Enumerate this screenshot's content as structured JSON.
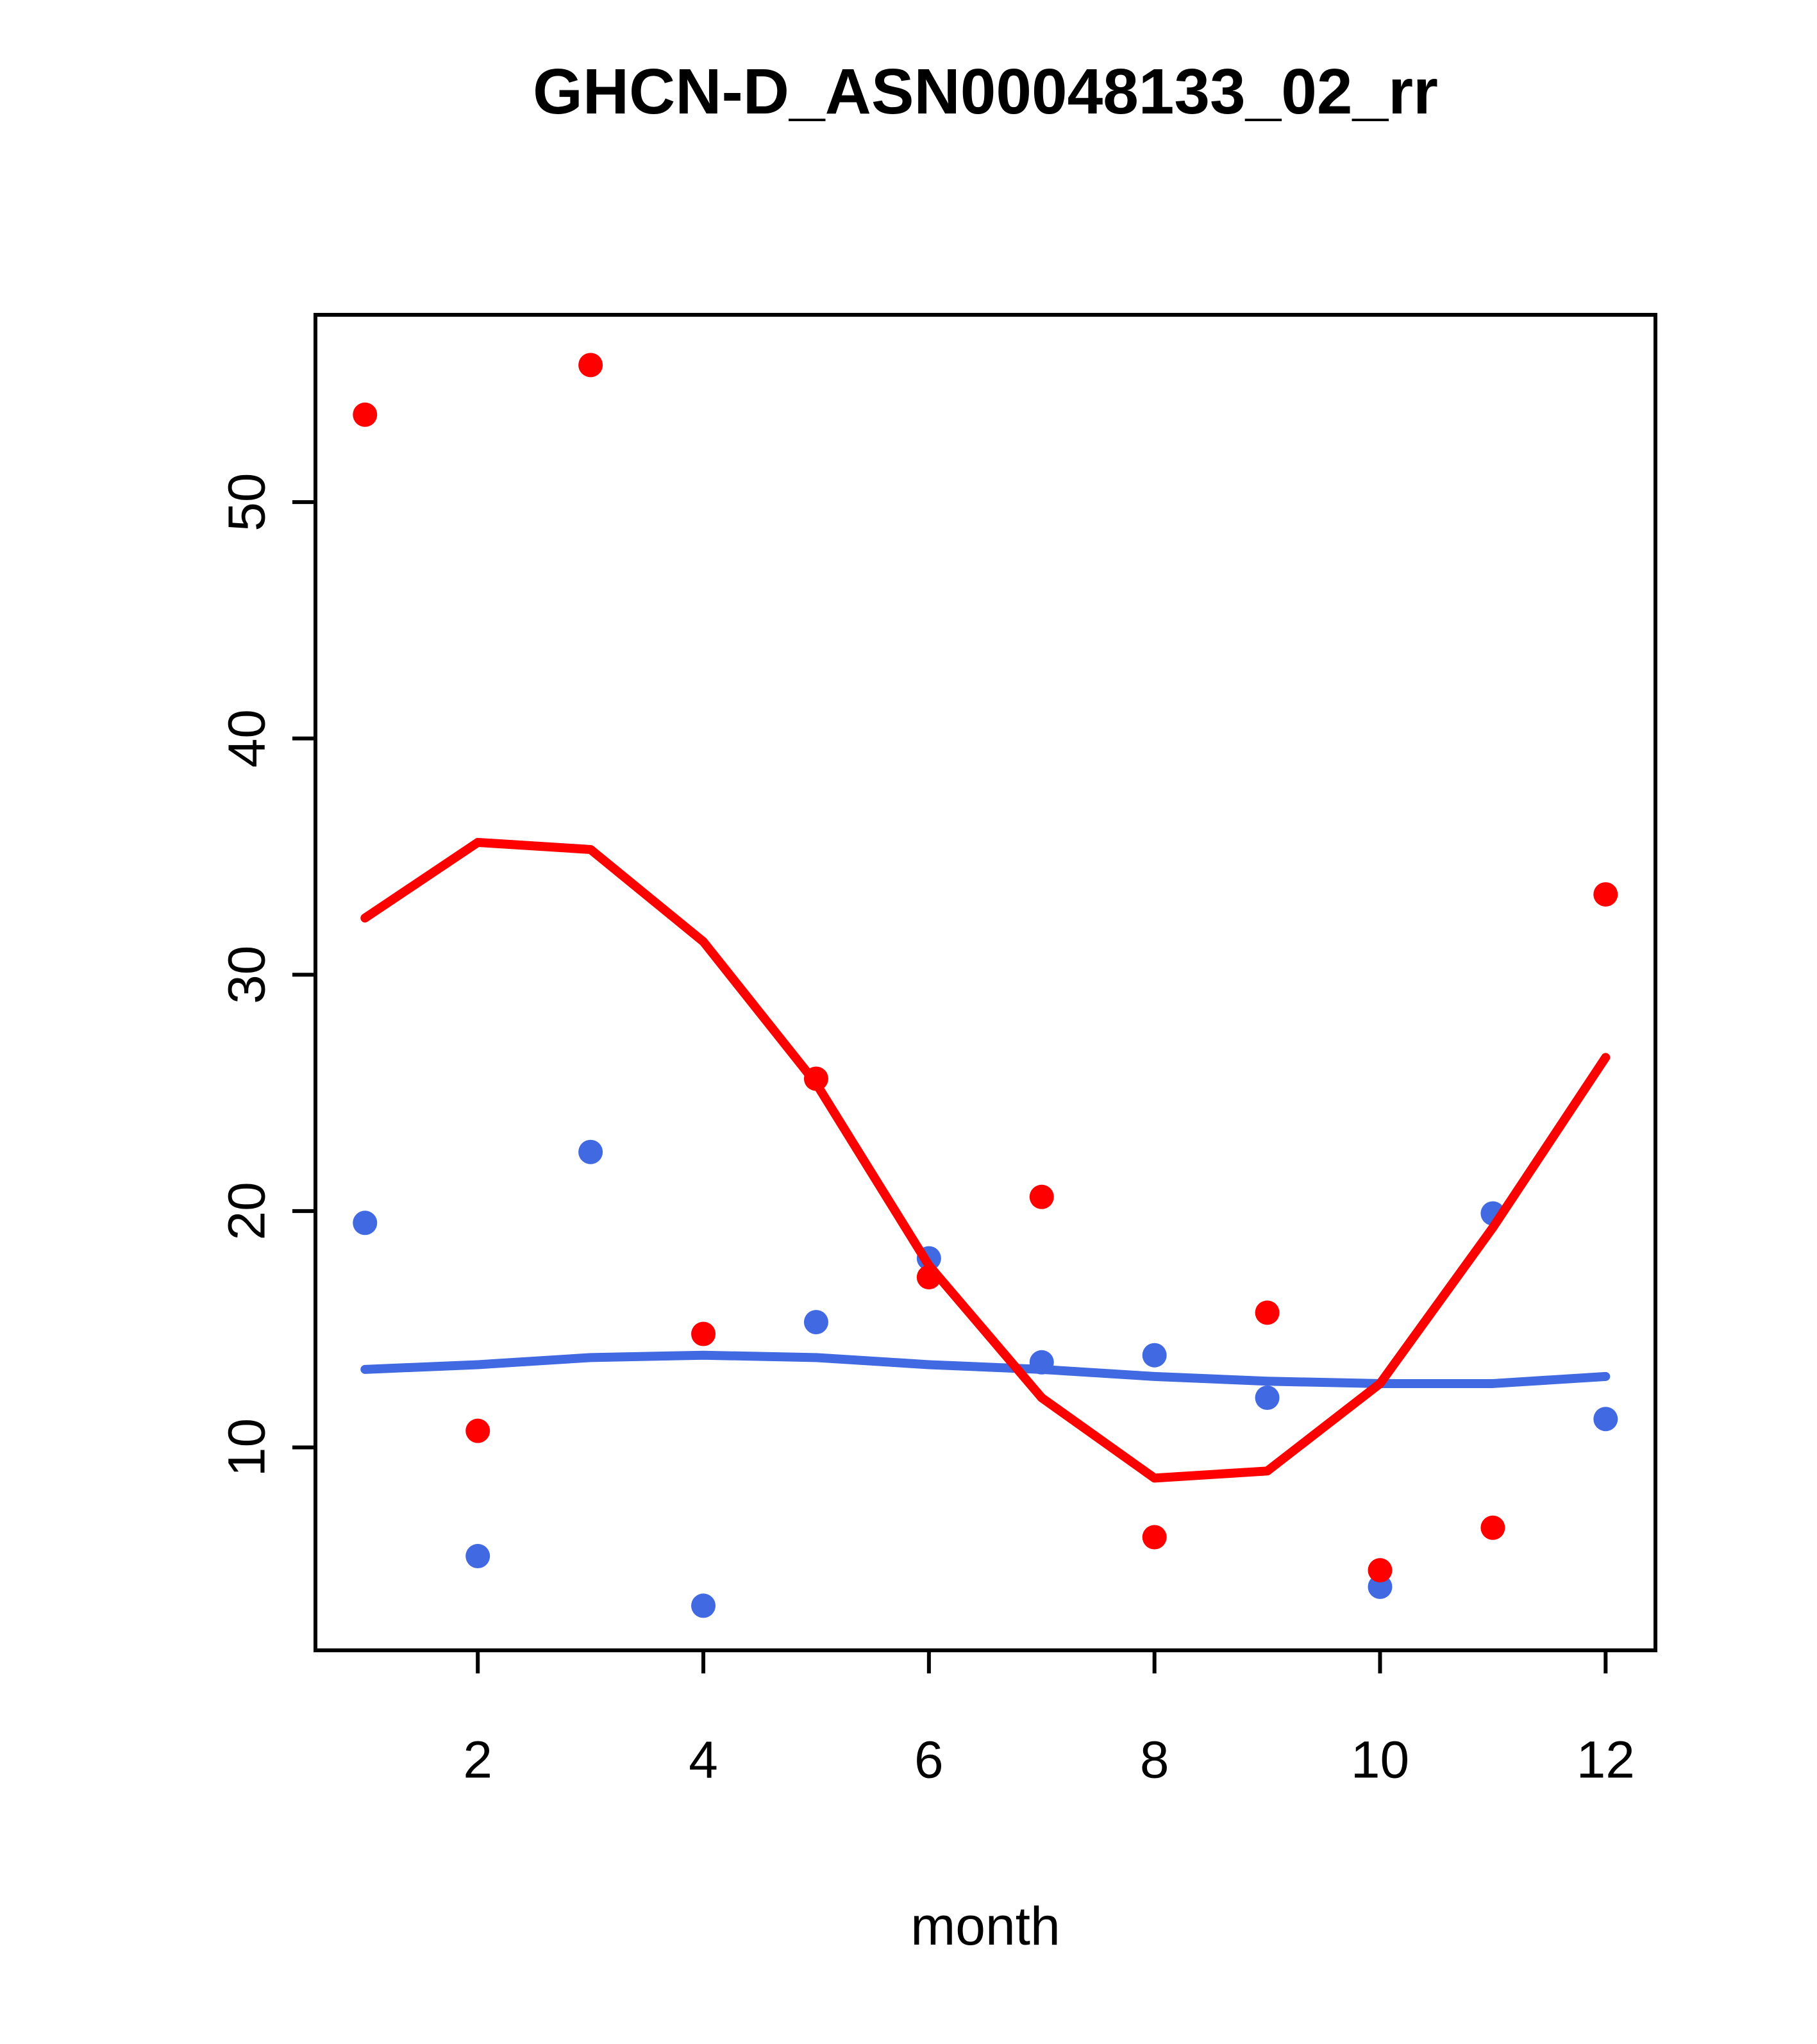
{
  "chart_data": {
    "type": "scatter",
    "title": "GHCN-D_ASN00048133_02_rr",
    "xlabel": "month",
    "ylabel": "",
    "x": [
      1,
      2,
      3,
      4,
      5,
      6,
      7,
      8,
      9,
      10,
      11,
      12
    ],
    "series": [
      {
        "name": "blue-points",
        "kind": "points",
        "color": "#4169e1",
        "values": [
          19.5,
          5.4,
          22.5,
          3.3,
          15.3,
          18.0,
          13.6,
          13.9,
          12.1,
          4.1,
          19.9,
          11.2
        ]
      },
      {
        "name": "red-points",
        "kind": "points",
        "color": "#ff0000",
        "values": [
          53.7,
          10.7,
          55.8,
          14.8,
          25.6,
          17.2,
          20.6,
          6.2,
          15.7,
          4.8,
          6.6,
          33.4
        ]
      },
      {
        "name": "blue-smooth-line",
        "kind": "line",
        "color": "#4169e1",
        "values": [
          13.3,
          13.5,
          13.8,
          13.9,
          13.8,
          13.5,
          13.3,
          13.0,
          12.8,
          12.7,
          12.7,
          13.0
        ]
      },
      {
        "name": "red-smooth-line",
        "kind": "line",
        "color": "#ff0000",
        "values": [
          32.4,
          35.6,
          35.3,
          31.4,
          25.4,
          17.7,
          12.1,
          8.7,
          9.0,
          12.7,
          19.3,
          26.5
        ]
      }
    ],
    "x_ticks": [
      2,
      4,
      6,
      8,
      10,
      12
    ],
    "y_ticks": [
      10,
      20,
      30,
      40,
      50
    ],
    "xlim": [
      0.5606,
      12.4417
    ],
    "ylim": [
      1.412,
      57.926
    ],
    "grid": false,
    "legend": "none"
  },
  "colors": {
    "red": "#ff0000",
    "blue": "#4169e1",
    "axis": "#000000",
    "background": "#ffffff"
  }
}
